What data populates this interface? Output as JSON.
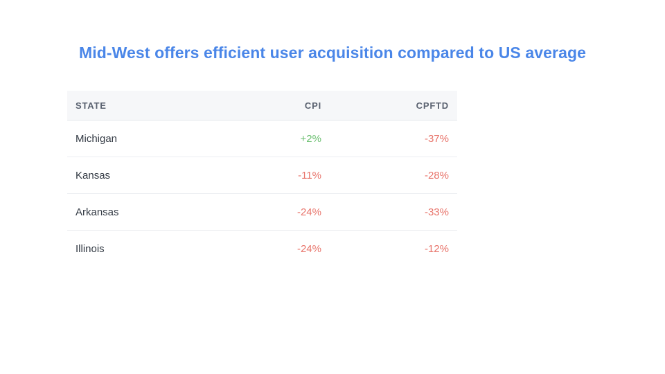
{
  "slide": {
    "title": "Mid-West offers efficient user acquisition compared to US average"
  },
  "table": {
    "headers": {
      "state": "STATE",
      "cpi": "CPI",
      "cpftd": "CPFTD"
    },
    "rows": [
      {
        "state": "Michigan",
        "cpi": "+2%",
        "cpftd": "-37%"
      },
      {
        "state": "Kansas",
        "cpi": "-11%",
        "cpftd": "-28%"
      },
      {
        "state": "Arkansas",
        "cpi": "-24%",
        "cpftd": "-33%"
      },
      {
        "state": "Illinois",
        "cpi": "-24%",
        "cpftd": "-12%"
      }
    ]
  },
  "colors": {
    "title": "#4a86e8",
    "positive": "#6abf6f",
    "negative": "#e8746b",
    "header_background": "#f6f7f9"
  }
}
